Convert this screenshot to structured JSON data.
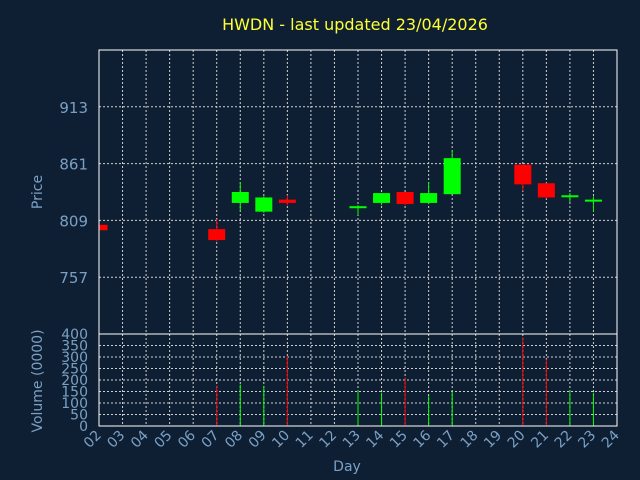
{
  "chart_data": {
    "type": "candlestick",
    "title": "HWDN - last updated 23/04/2026",
    "xlabel": "Day",
    "price_panel": {
      "ylabel": "Price",
      "ylim": [
        705,
        965
      ],
      "yticks": [
        757,
        809,
        861,
        913
      ],
      "grid": true
    },
    "volume_panel": {
      "ylabel": "Volume (0000)",
      "ylim": [
        0,
        400
      ],
      "yticks": [
        0,
        50,
        100,
        150,
        200,
        250,
        300,
        350,
        400
      ],
      "grid": true
    },
    "x_ticks": [
      "02",
      "03",
      "04",
      "05",
      "06",
      "07",
      "08",
      "09",
      "10",
      "11",
      "12",
      "13",
      "14",
      "15",
      "16",
      "17",
      "18",
      "19",
      "20",
      "21",
      "22",
      "23",
      "24"
    ],
    "candles": [
      {
        "day": "02",
        "open": 805,
        "high": 805,
        "low": 800,
        "close": 800,
        "volume": 0
      },
      {
        "day": "07",
        "open": 801,
        "high": 810,
        "low": 790,
        "close": 791,
        "volume": 175
      },
      {
        "day": "08",
        "open": 825,
        "high": 844,
        "low": 818,
        "close": 835,
        "volume": 180
      },
      {
        "day": "09",
        "open": 817,
        "high": 831,
        "low": 816,
        "close": 830,
        "volume": 175
      },
      {
        "day": "10",
        "open": 828,
        "high": 832,
        "low": 823,
        "close": 825,
        "volume": 305
      },
      {
        "day": "13",
        "open": 822,
        "high": 823,
        "low": 814,
        "close": 822,
        "volume": 155
      },
      {
        "day": "14",
        "open": 825,
        "high": 834,
        "low": 823,
        "close": 834,
        "volume": 145
      },
      {
        "day": "15",
        "open": 835,
        "high": 835,
        "low": 823,
        "close": 824,
        "volume": 210
      },
      {
        "day": "16",
        "open": 825,
        "high": 844,
        "low": 824,
        "close": 834,
        "volume": 130
      },
      {
        "day": "17",
        "open": 833,
        "high": 873,
        "low": 833,
        "close": 866,
        "volume": 150
      },
      {
        "day": "20",
        "open": 860,
        "high": 860,
        "low": 836,
        "close": 842,
        "volume": 385
      },
      {
        "day": "21",
        "open": 843,
        "high": 843,
        "low": 829,
        "close": 830,
        "volume": 290
      },
      {
        "day": "22",
        "open": 831,
        "high": 834,
        "low": 826,
        "close": 832,
        "volume": 155
      },
      {
        "day": "23",
        "open": 827,
        "high": 831,
        "low": 817,
        "close": 828,
        "volume": 145
      }
    ],
    "colors": {
      "up": "#00ff00",
      "down": "#ff0000",
      "background": "#0f1f33",
      "grid": "#d0d0d0",
      "axis": "#ffffff",
      "text": "#7aa0c4",
      "title": "#ffff33"
    }
  }
}
